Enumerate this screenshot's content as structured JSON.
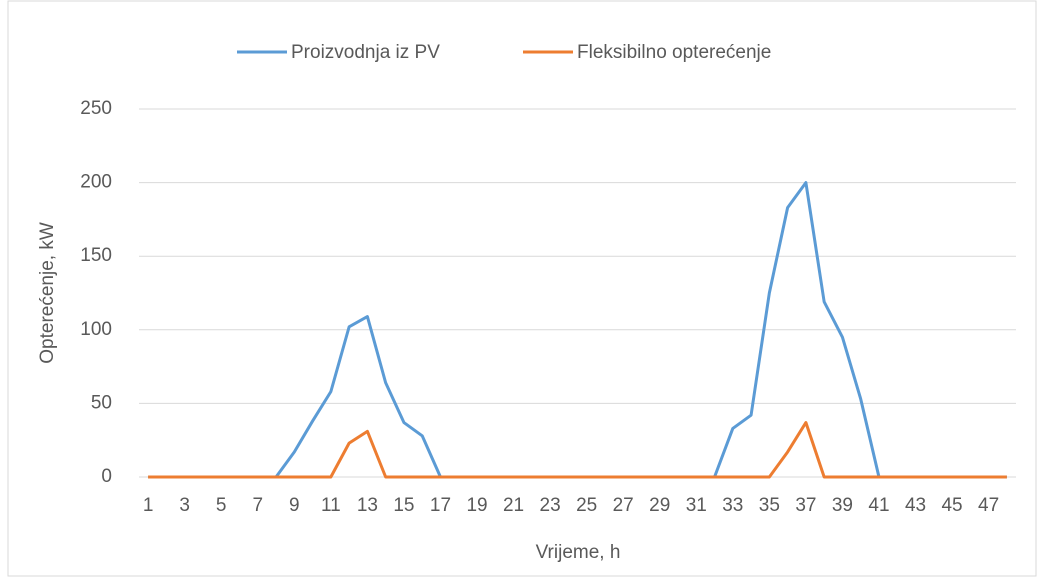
{
  "chart_data": {
    "type": "line",
    "y_label": "Opterećenje, kW",
    "x_label": "Vrijeme, h",
    "categories": [
      1,
      null,
      3,
      null,
      5,
      null,
      7,
      null,
      9,
      null,
      11,
      null,
      13,
      null,
      15,
      null,
      17,
      null,
      19,
      null,
      21,
      null,
      23,
      null,
      25,
      null,
      27,
      null,
      29,
      null,
      31,
      null,
      33,
      null,
      35,
      null,
      37,
      null,
      39,
      null,
      41,
      null,
      43,
      null,
      45,
      null,
      47,
      null
    ],
    "series": [
      {
        "name": "Proizvodnja iz PV",
        "color": "#5b9bd5",
        "values": [
          0,
          0,
          0,
          0,
          0,
          0,
          0,
          0,
          17,
          38,
          58,
          102,
          109,
          64,
          37,
          28,
          0,
          0,
          0,
          0,
          0,
          0,
          0,
          0,
          0,
          0,
          0,
          0,
          0,
          0,
          0,
          0,
          33,
          42,
          125,
          183,
          200,
          119,
          95,
          53,
          0,
          0,
          0,
          0,
          0,
          0,
          0,
          0
        ]
      },
      {
        "name": "Fleksibilno opterećenje",
        "color": "#ed7d31",
        "values": [
          0,
          0,
          0,
          0,
          0,
          0,
          0,
          0,
          0,
          0,
          0,
          23,
          31,
          0,
          0,
          0,
          0,
          0,
          0,
          0,
          0,
          0,
          0,
          0,
          0,
          0,
          0,
          0,
          0,
          0,
          0,
          0,
          0,
          0,
          0,
          17,
          37,
          0,
          0,
          0,
          0,
          0,
          0,
          0,
          0,
          0,
          0,
          0
        ]
      }
    ],
    "ylim": [
      0,
      250
    ],
    "yticks": [
      0,
      50,
      100,
      150,
      200,
      250
    ],
    "grid": true,
    "legend": "top"
  }
}
